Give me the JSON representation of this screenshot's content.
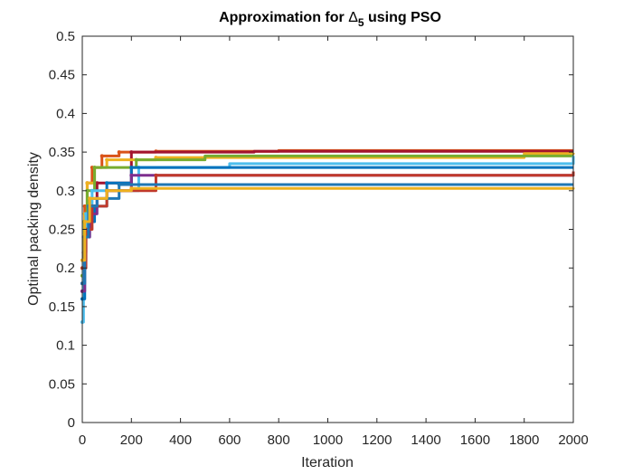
{
  "chart_data": {
    "type": "line",
    "title": "Approximation for Δ5 using PSO",
    "title_parts": {
      "prefix": "Approximation for ",
      "symbol": "Δ",
      "subscript": "5",
      "suffix": " using PSO"
    },
    "xlabel": "Iteration",
    "ylabel": "Optimal packing density",
    "xlim": [
      0,
      2000
    ],
    "ylim": [
      0,
      0.5
    ],
    "x_ticks": [
      0,
      200,
      400,
      600,
      800,
      1000,
      1200,
      1400,
      1600,
      1800,
      2000
    ],
    "y_ticks": [
      0,
      0.05,
      0.1,
      0.15,
      0.2,
      0.25,
      0.3,
      0.35,
      0.4,
      0.45,
      0.5
    ],
    "grid": false,
    "legend": "none",
    "series": [
      {
        "color": "#D95319",
        "x": [
          0,
          5,
          10,
          20,
          40,
          80,
          150,
          300,
          800,
          2000
        ],
        "y": [
          0.18,
          0.24,
          0.28,
          0.31,
          0.33,
          0.345,
          0.35,
          0.351,
          0.352,
          0.352
        ]
      },
      {
        "color": "#A2142F",
        "x": [
          0,
          5,
          15,
          30,
          60,
          200,
          700,
          2000
        ],
        "y": [
          0.17,
          0.22,
          0.27,
          0.29,
          0.31,
          0.35,
          0.351,
          0.351
        ]
      },
      {
        "color": "#EDB120",
        "x": [
          0,
          10,
          20,
          50,
          100,
          300,
          1700,
          1800,
          2000
        ],
        "y": [
          0.2,
          0.27,
          0.31,
          0.33,
          0.34,
          0.343,
          0.343,
          0.348,
          0.349
        ]
      },
      {
        "color": "#77AC30",
        "x": [
          0,
          8,
          20,
          50,
          220,
          500,
          2000
        ],
        "y": [
          0.19,
          0.26,
          0.3,
          0.33,
          0.34,
          0.345,
          0.345
        ]
      },
      {
        "color": "#4DBEEE",
        "x": [
          0,
          5,
          15,
          40,
          230,
          600,
          2000
        ],
        "y": [
          0.13,
          0.21,
          0.27,
          0.3,
          0.33,
          0.335,
          0.345
        ]
      },
      {
        "color": "#0072BD",
        "x": [
          0,
          10,
          30,
          50,
          100,
          200,
          2000
        ],
        "y": [
          0.16,
          0.24,
          0.26,
          0.28,
          0.31,
          0.33,
          0.33
        ]
      },
      {
        "color": "#7E2F8E",
        "x": [
          0,
          10,
          30,
          60,
          100,
          200,
          2000
        ],
        "y": [
          0.17,
          0.24,
          0.27,
          0.29,
          0.3,
          0.32,
          0.322
        ]
      },
      {
        "color": "#C0392B",
        "x": [
          0,
          15,
          40,
          100,
          300,
          2000
        ],
        "y": [
          0.2,
          0.25,
          0.28,
          0.3,
          0.32,
          0.325
        ]
      },
      {
        "color": "#1F77B4",
        "x": [
          0,
          10,
          25,
          60,
          150,
          2000
        ],
        "y": [
          0.18,
          0.24,
          0.28,
          0.29,
          0.308,
          0.308
        ]
      },
      {
        "color": "#EDB120",
        "x": [
          0,
          10,
          30,
          100,
          200,
          2000
        ],
        "y": [
          0.21,
          0.26,
          0.29,
          0.3,
          0.303,
          0.304
        ]
      }
    ]
  }
}
